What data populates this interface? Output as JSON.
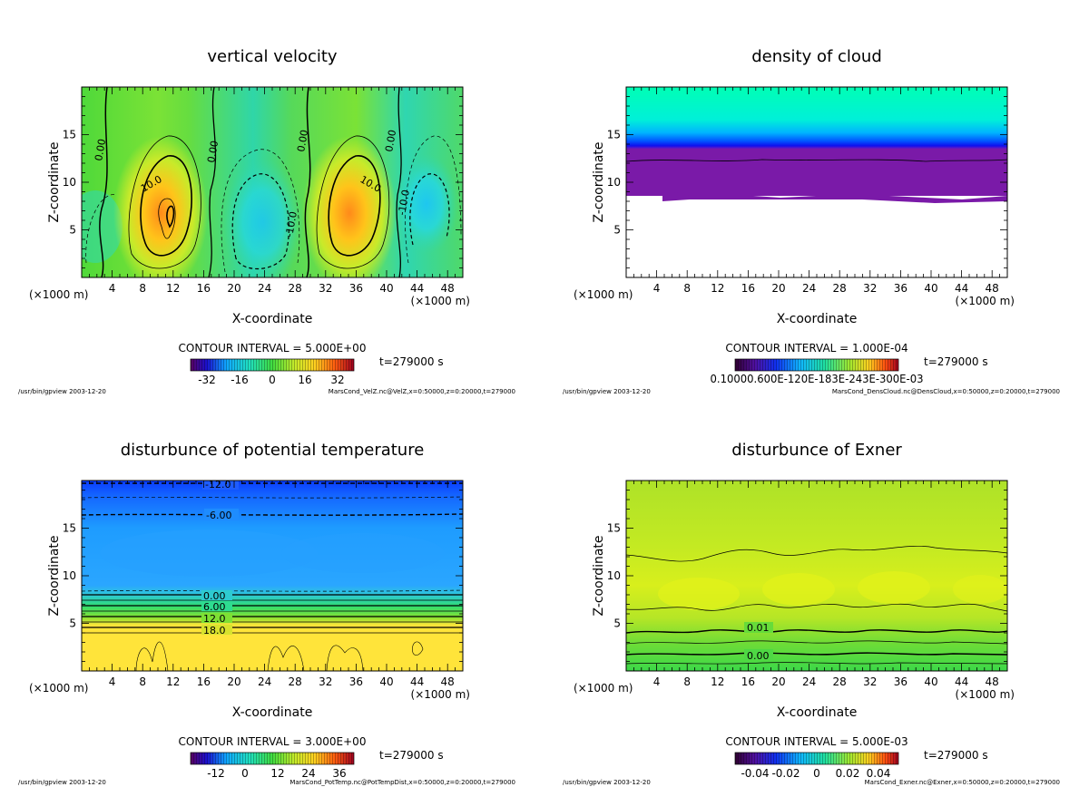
{
  "colors": {
    "frame": "#000000",
    "contour": "#000000"
  },
  "chart_data": [
    {
      "id": "p1",
      "type": "heatmap",
      "title": "vertical velocity",
      "xlabel": "X-coordinate",
      "ylabel": "Z-coordinate",
      "x_unit_left": "(×1000 m)",
      "x_unit_right": "(×1000 m)",
      "xlim": [
        0,
        50
      ],
      "ylim": [
        0,
        20
      ],
      "x_ticks": [
        4,
        8,
        12,
        16,
        20,
        24,
        28,
        32,
        36,
        40,
        44,
        48
      ],
      "y_ticks": [
        5,
        10,
        15
      ],
      "contour_interval": "CONTOUR INTERVAL = 5.000E+00",
      "time": "t=279000 s",
      "colorbar_ticks": [
        "-32",
        "-16",
        "0",
        "16",
        "32"
      ],
      "contour_labels": [
        "0.00",
        "0.00",
        "0.00",
        "0.00",
        "10.0",
        "10.0",
        "-10.0",
        "-10.0",
        "0.00"
      ],
      "footer_left": "/usr/bin/gpview   2003-12-20",
      "footer_right": "MarsCond_VelZ.nc@VelZ,x=0:50000,z=0:20000,t=279000"
    },
    {
      "id": "p2",
      "type": "heatmap",
      "title": "density of cloud",
      "xlabel": "X-coordinate",
      "ylabel": "Z-coordinate",
      "x_unit_left": "(×1000 m)",
      "x_unit_right": "(×1000 m)",
      "xlim": [
        0,
        50
      ],
      "ylim": [
        0,
        20
      ],
      "x_ticks": [
        4,
        8,
        12,
        16,
        20,
        24,
        28,
        32,
        36,
        40,
        44,
        48
      ],
      "y_ticks": [
        5,
        10,
        15
      ],
      "contour_interval": "CONTOUR INTERVAL = 1.000E-04",
      "time": "t=279000 s",
      "colorbar_ticks": [
        "0.10000.600E-120E-183E-243E-300E-03"
      ],
      "contour_labels": [],
      "footer_left": "/usr/bin/gpview   2003-12-20",
      "footer_right": "MarsCond_DensCloud.nc@DensCloud,x=0:50000,z=0:20000,t=279000"
    },
    {
      "id": "p3",
      "type": "heatmap",
      "title": "disturbunce of potential temperature",
      "xlabel": "X-coordinate",
      "ylabel": "Z-coordinate",
      "x_unit_left": "(×1000 m)",
      "x_unit_right": "(×1000 m)",
      "xlim": [
        0,
        50
      ],
      "ylim": [
        0,
        20
      ],
      "x_ticks": [
        4,
        8,
        12,
        16,
        20,
        24,
        28,
        32,
        36,
        40,
        44,
        48
      ],
      "y_ticks": [
        5,
        10,
        15
      ],
      "contour_interval": "CONTOUR INTERVAL = 3.000E+00",
      "time": "t=279000 s",
      "colorbar_ticks": [
        "-12",
        "0",
        "12",
        "24",
        "36"
      ],
      "contour_labels": [
        "-12.0",
        "-6.00",
        "0.00",
        "6.00",
        "12.0",
        "18.0"
      ],
      "footer_left": "/usr/bin/gpview   2003-12-20",
      "footer_right": "MarsCond_PotTemp.nc@PotTempDist,x=0:50000,z=0:20000,t=279000"
    },
    {
      "id": "p4",
      "type": "heatmap",
      "title": "disturbunce of Exner",
      "xlabel": "X-coordinate",
      "ylabel": "Z-coordinate",
      "x_unit_left": "(×1000 m)",
      "x_unit_right": "(×1000 m)",
      "xlim": [
        0,
        50
      ],
      "ylim": [
        0,
        20
      ],
      "x_ticks": [
        4,
        8,
        12,
        16,
        20,
        24,
        28,
        32,
        36,
        40,
        44,
        48
      ],
      "y_ticks": [
        5,
        10,
        15
      ],
      "contour_interval": "CONTOUR INTERVAL = 5.000E-03",
      "time": "t=279000 s",
      "colorbar_ticks": [
        "-0.04",
        "-0.02",
        "0",
        "0.02",
        "0.04"
      ],
      "contour_labels": [
        "0.01",
        "0.00"
      ],
      "footer_left": "/usr/bin/gpview   2003-12-20",
      "footer_right": "MarsCond_Exner.nc@Exner,x=0:50000,z=0:20000,t=279000"
    }
  ]
}
